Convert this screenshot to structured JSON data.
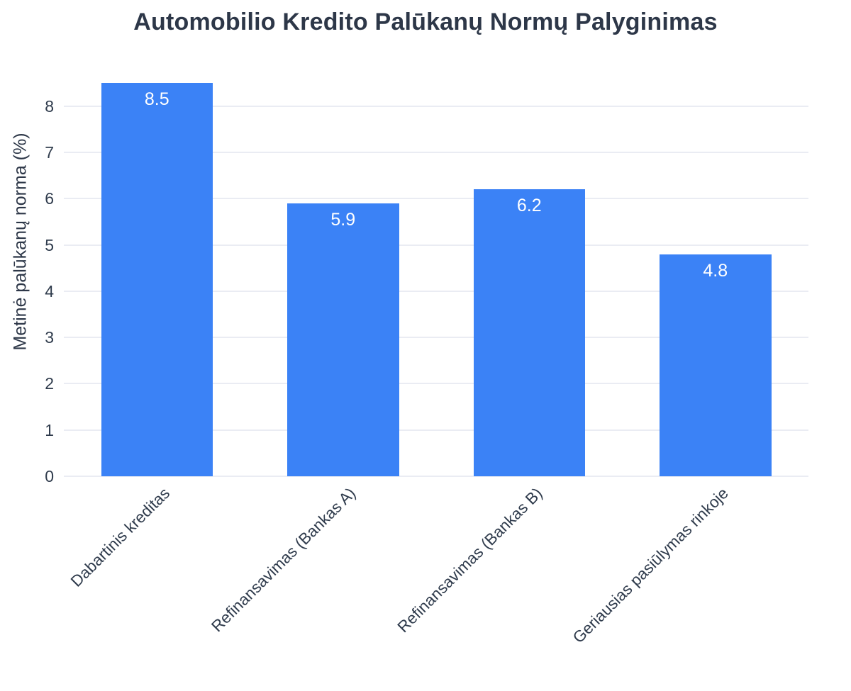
{
  "title": "Automobilio Kredito Palūkanų Normų Palyginimas",
  "chart_data": {
    "type": "bar",
    "title": "Automobilio Kredito Palūkanų Normų Palyginimas",
    "xlabel": "",
    "ylabel": "Metinė palūkanų norma (%)",
    "categories": [
      "Dabartinis kreditas",
      "Refinansavimas (Bankas A)",
      "Refinansavimas (Bankas B)",
      "Geriausias pasiūlymas rinkoje"
    ],
    "values": [
      8.5,
      5.9,
      6.2,
      4.8
    ],
    "bar_labels": [
      "8.5",
      "5.9",
      "6.2",
      "4.8"
    ],
    "yticks": [
      0,
      1,
      2,
      3,
      4,
      5,
      6,
      7,
      8
    ],
    "ylim": [
      0,
      8.95
    ],
    "grid": "horizontal",
    "legend": "none",
    "x_label_rotation_deg": 45,
    "colors": {
      "bar": "#3b82f6",
      "grid": "#eaecf3",
      "title_text": "#2d3748",
      "tick_text": "#2f3b4c",
      "bar_label_text": "#ffffff",
      "background": "#ffffff"
    }
  }
}
